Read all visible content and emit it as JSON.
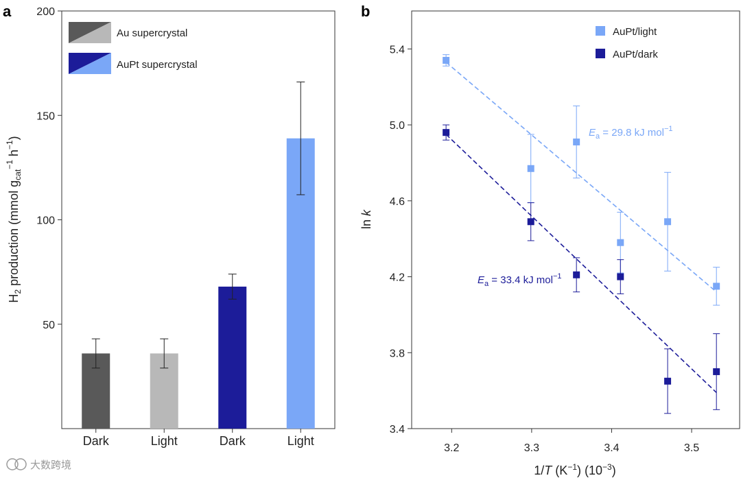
{
  "panel_a_label": "a",
  "panel_b_label": "b",
  "watermark": "大数跨境",
  "chart_data": [
    {
      "type": "bar",
      "panel": "a",
      "categories": [
        "Dark",
        "Light",
        "Dark",
        "Light"
      ],
      "values": [
        36,
        36,
        68,
        139
      ],
      "errors": [
        7,
        7,
        6,
        27
      ],
      "bar_colors": [
        "#595959",
        "#b8b8b8",
        "#1c1c99",
        "#7aa7f7"
      ],
      "ylabel": "H2 production (mmol gcat−1 h−1)",
      "ylim": [
        0,
        200
      ],
      "yticks": [
        50,
        100,
        150,
        200
      ],
      "legend_position": "top-left",
      "legend": [
        {
          "label": "Au supercrystal",
          "colors": [
            "#595959",
            "#b8b8b8"
          ]
        },
        {
          "label": "AuPt supercrystal",
          "colors": [
            "#1c1c99",
            "#7aa7f7"
          ]
        }
      ]
    },
    {
      "type": "scatter",
      "panel": "b",
      "xlabel": "1/T (K−1) (10−3)",
      "ylabel": "ln k",
      "xlim": [
        3.15,
        3.56
      ],
      "ylim": [
        3.4,
        5.6
      ],
      "xticks": [
        3.2,
        3.3,
        3.4,
        3.5
      ],
      "yticks": [
        3.4,
        3.8,
        4.2,
        4.6,
        5.0,
        5.4
      ],
      "legend_position": "top-right",
      "series": [
        {
          "name": "AuPt/light",
          "color": "#7aa7f7",
          "x": [
            3.193,
            3.299,
            3.356,
            3.411,
            3.47,
            3.531
          ],
          "y": [
            5.34,
            4.77,
            4.91,
            4.38,
            4.49,
            4.15
          ],
          "err": [
            0.03,
            0.18,
            0.19,
            0.16,
            0.26,
            0.1
          ],
          "fit": {
            "x": [
              3.193,
              3.531
            ],
            "y": [
              5.33,
              4.12
            ]
          },
          "annotation": "Ea = 29.8 kJ mol−1"
        },
        {
          "name": "AuPt/dark",
          "color": "#1c1c99",
          "x": [
            3.193,
            3.299,
            3.356,
            3.411,
            3.47,
            3.531
          ],
          "y": [
            4.96,
            4.49,
            4.21,
            4.2,
            3.65,
            3.7
          ],
          "err": [
            0.04,
            0.1,
            0.09,
            0.09,
            0.17,
            0.2
          ],
          "fit": {
            "x": [
              3.193,
              3.531
            ],
            "y": [
              4.95,
              3.59
            ]
          },
          "annotation": "Ea = 33.4 kJ mol−1"
        }
      ]
    }
  ]
}
